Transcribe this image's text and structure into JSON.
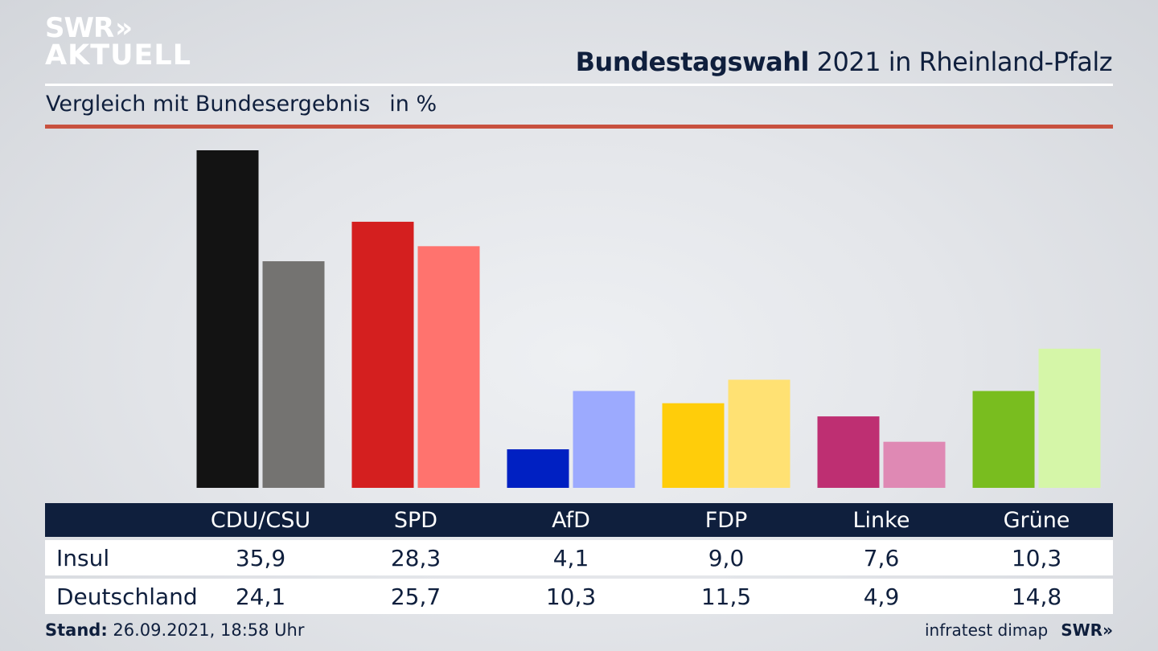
{
  "header": {
    "logo_line1": "SWR",
    "logo_chevrons": "»",
    "logo_line2": "AKTUELL",
    "title_bold": "Bundestagswahl",
    "title_rest": " 2021 in Rheinland-Pfalz",
    "subtitle": "Vergleich mit Bundesergebnis",
    "unit": "in %"
  },
  "footer": {
    "stand_label": "Stand:",
    "stand_value": " 26.09.2021, 18:58 Uhr",
    "source": "infratest dimap",
    "brand": "SWR",
    "brand_chevrons": "»"
  },
  "colors": {
    "title_text": "#0f1f3d",
    "accent_rule": "#c8513f",
    "table_header_bg": "#0f1f3d"
  },
  "chart_data": {
    "type": "bar",
    "title": "Bundestagswahl 2021 in Rheinland-Pfalz",
    "subtitle": "Vergleich mit Bundesergebnis in %",
    "xlabel": "",
    "ylabel": "in %",
    "ylim": [
      0,
      36
    ],
    "grid": false,
    "categories": [
      "CDU/CSU",
      "SPD",
      "AfD",
      "FDP",
      "Linke",
      "Grüne"
    ],
    "series": [
      {
        "name": "Insul",
        "values": [
          35.9,
          28.3,
          4.1,
          9.0,
          7.6,
          10.3
        ],
        "labels": [
          "35,9",
          "28,3",
          "4,1",
          "9,0",
          "7,6",
          "10,3"
        ],
        "colors": [
          "#131313",
          "#d41f1f",
          "#0020c2",
          "#ffcd0a",
          "#be2f72",
          "#79bd1f"
        ]
      },
      {
        "name": "Deutschland",
        "values": [
          24.1,
          25.7,
          10.3,
          11.5,
          4.9,
          14.8
        ],
        "labels": [
          "24,1",
          "25,7",
          "10,3",
          "11,5",
          "4,9",
          "14,8"
        ],
        "colors": [
          "#747371",
          "#ff736e",
          "#9caafe",
          "#ffe173",
          "#df89b4",
          "#d5f6a8"
        ]
      }
    ]
  }
}
